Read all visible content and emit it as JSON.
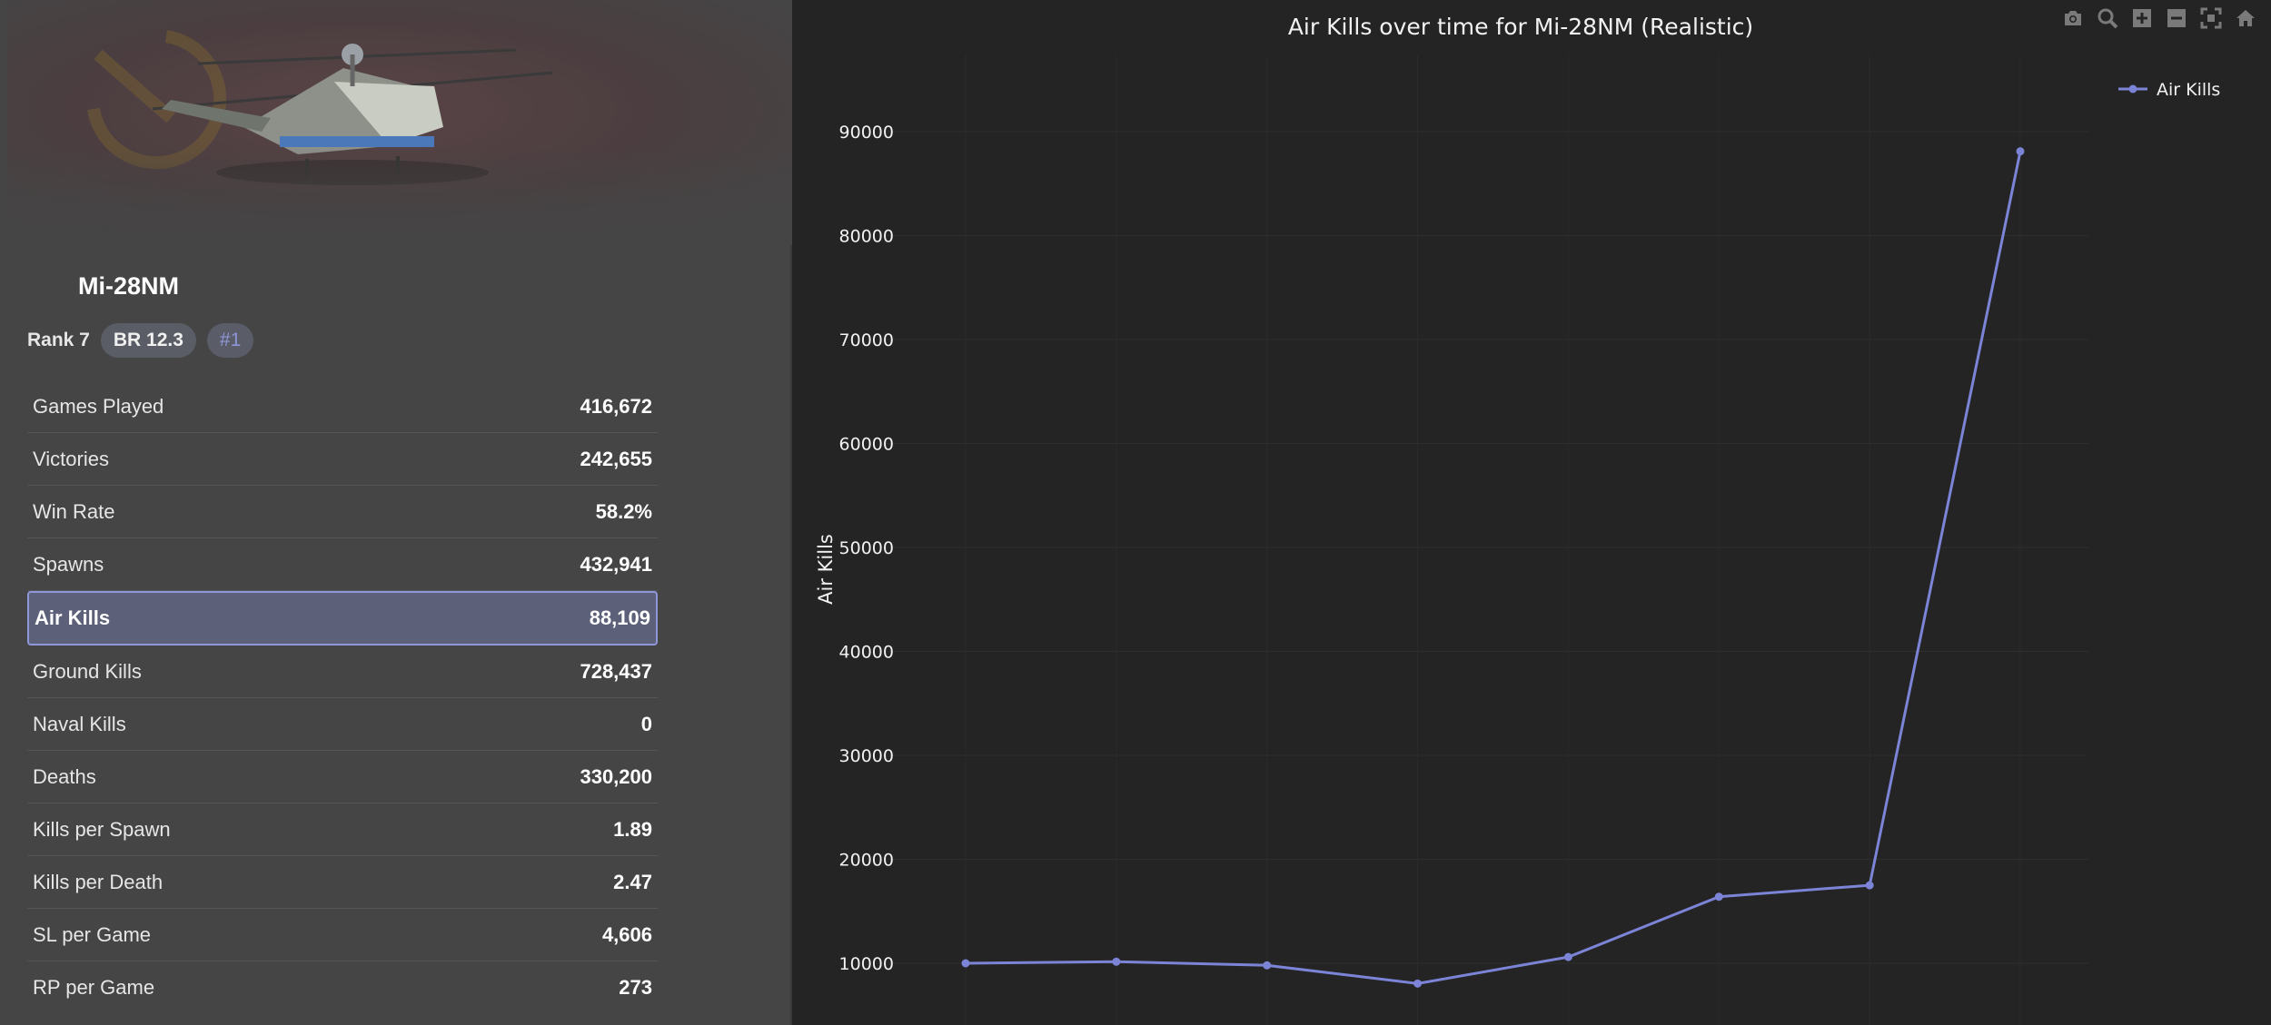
{
  "vehicle": {
    "name": "Mi-28NM",
    "rank_label": "Rank 7",
    "br_label": "BR 12.3",
    "position_label": "#1"
  },
  "stats": [
    {
      "label": "Games Played",
      "value": "416,672"
    },
    {
      "label": "Victories",
      "value": "242,655"
    },
    {
      "label": "Win Rate",
      "value": "58.2%"
    },
    {
      "label": "Spawns",
      "value": "432,941"
    },
    {
      "label": "Air Kills",
      "value": "88,109",
      "selected": true
    },
    {
      "label": "Ground Kills",
      "value": "728,437"
    },
    {
      "label": "Naval Kills",
      "value": "0"
    },
    {
      "label": "Deaths",
      "value": "330,200"
    },
    {
      "label": "Kills per Spawn",
      "value": "1.89"
    },
    {
      "label": "Kills per Death",
      "value": "2.47"
    },
    {
      "label": "SL per Game",
      "value": "4,606"
    },
    {
      "label": "RP per Game",
      "value": "273"
    }
  ],
  "modebar": [
    "camera-icon",
    "zoom-icon",
    "zoom-in-icon",
    "zoom-out-icon",
    "autoscale-icon",
    "home-icon"
  ],
  "colors": {
    "accent": "#8f96d9",
    "line": "#7b84d6",
    "panel": "#454545",
    "chart_bg": "#242424"
  },
  "chart_data": {
    "type": "line",
    "title": "Air Kills over time for Mi-28NM (Realistic)",
    "xlabel": "",
    "ylabel": "Air Kills",
    "legend_position": "top-right",
    "grid": true,
    "ylim": [
      0,
      95000
    ],
    "yticks": [
      10000,
      20000,
      30000,
      40000,
      50000,
      60000,
      70000,
      80000,
      90000
    ],
    "x": [
      1,
      2,
      3,
      4,
      5,
      6,
      7,
      8
    ],
    "series": [
      {
        "name": "Air Kills",
        "values": [
          10000,
          10150,
          9800,
          8050,
          10600,
          16400,
          17500,
          88109
        ]
      }
    ]
  }
}
